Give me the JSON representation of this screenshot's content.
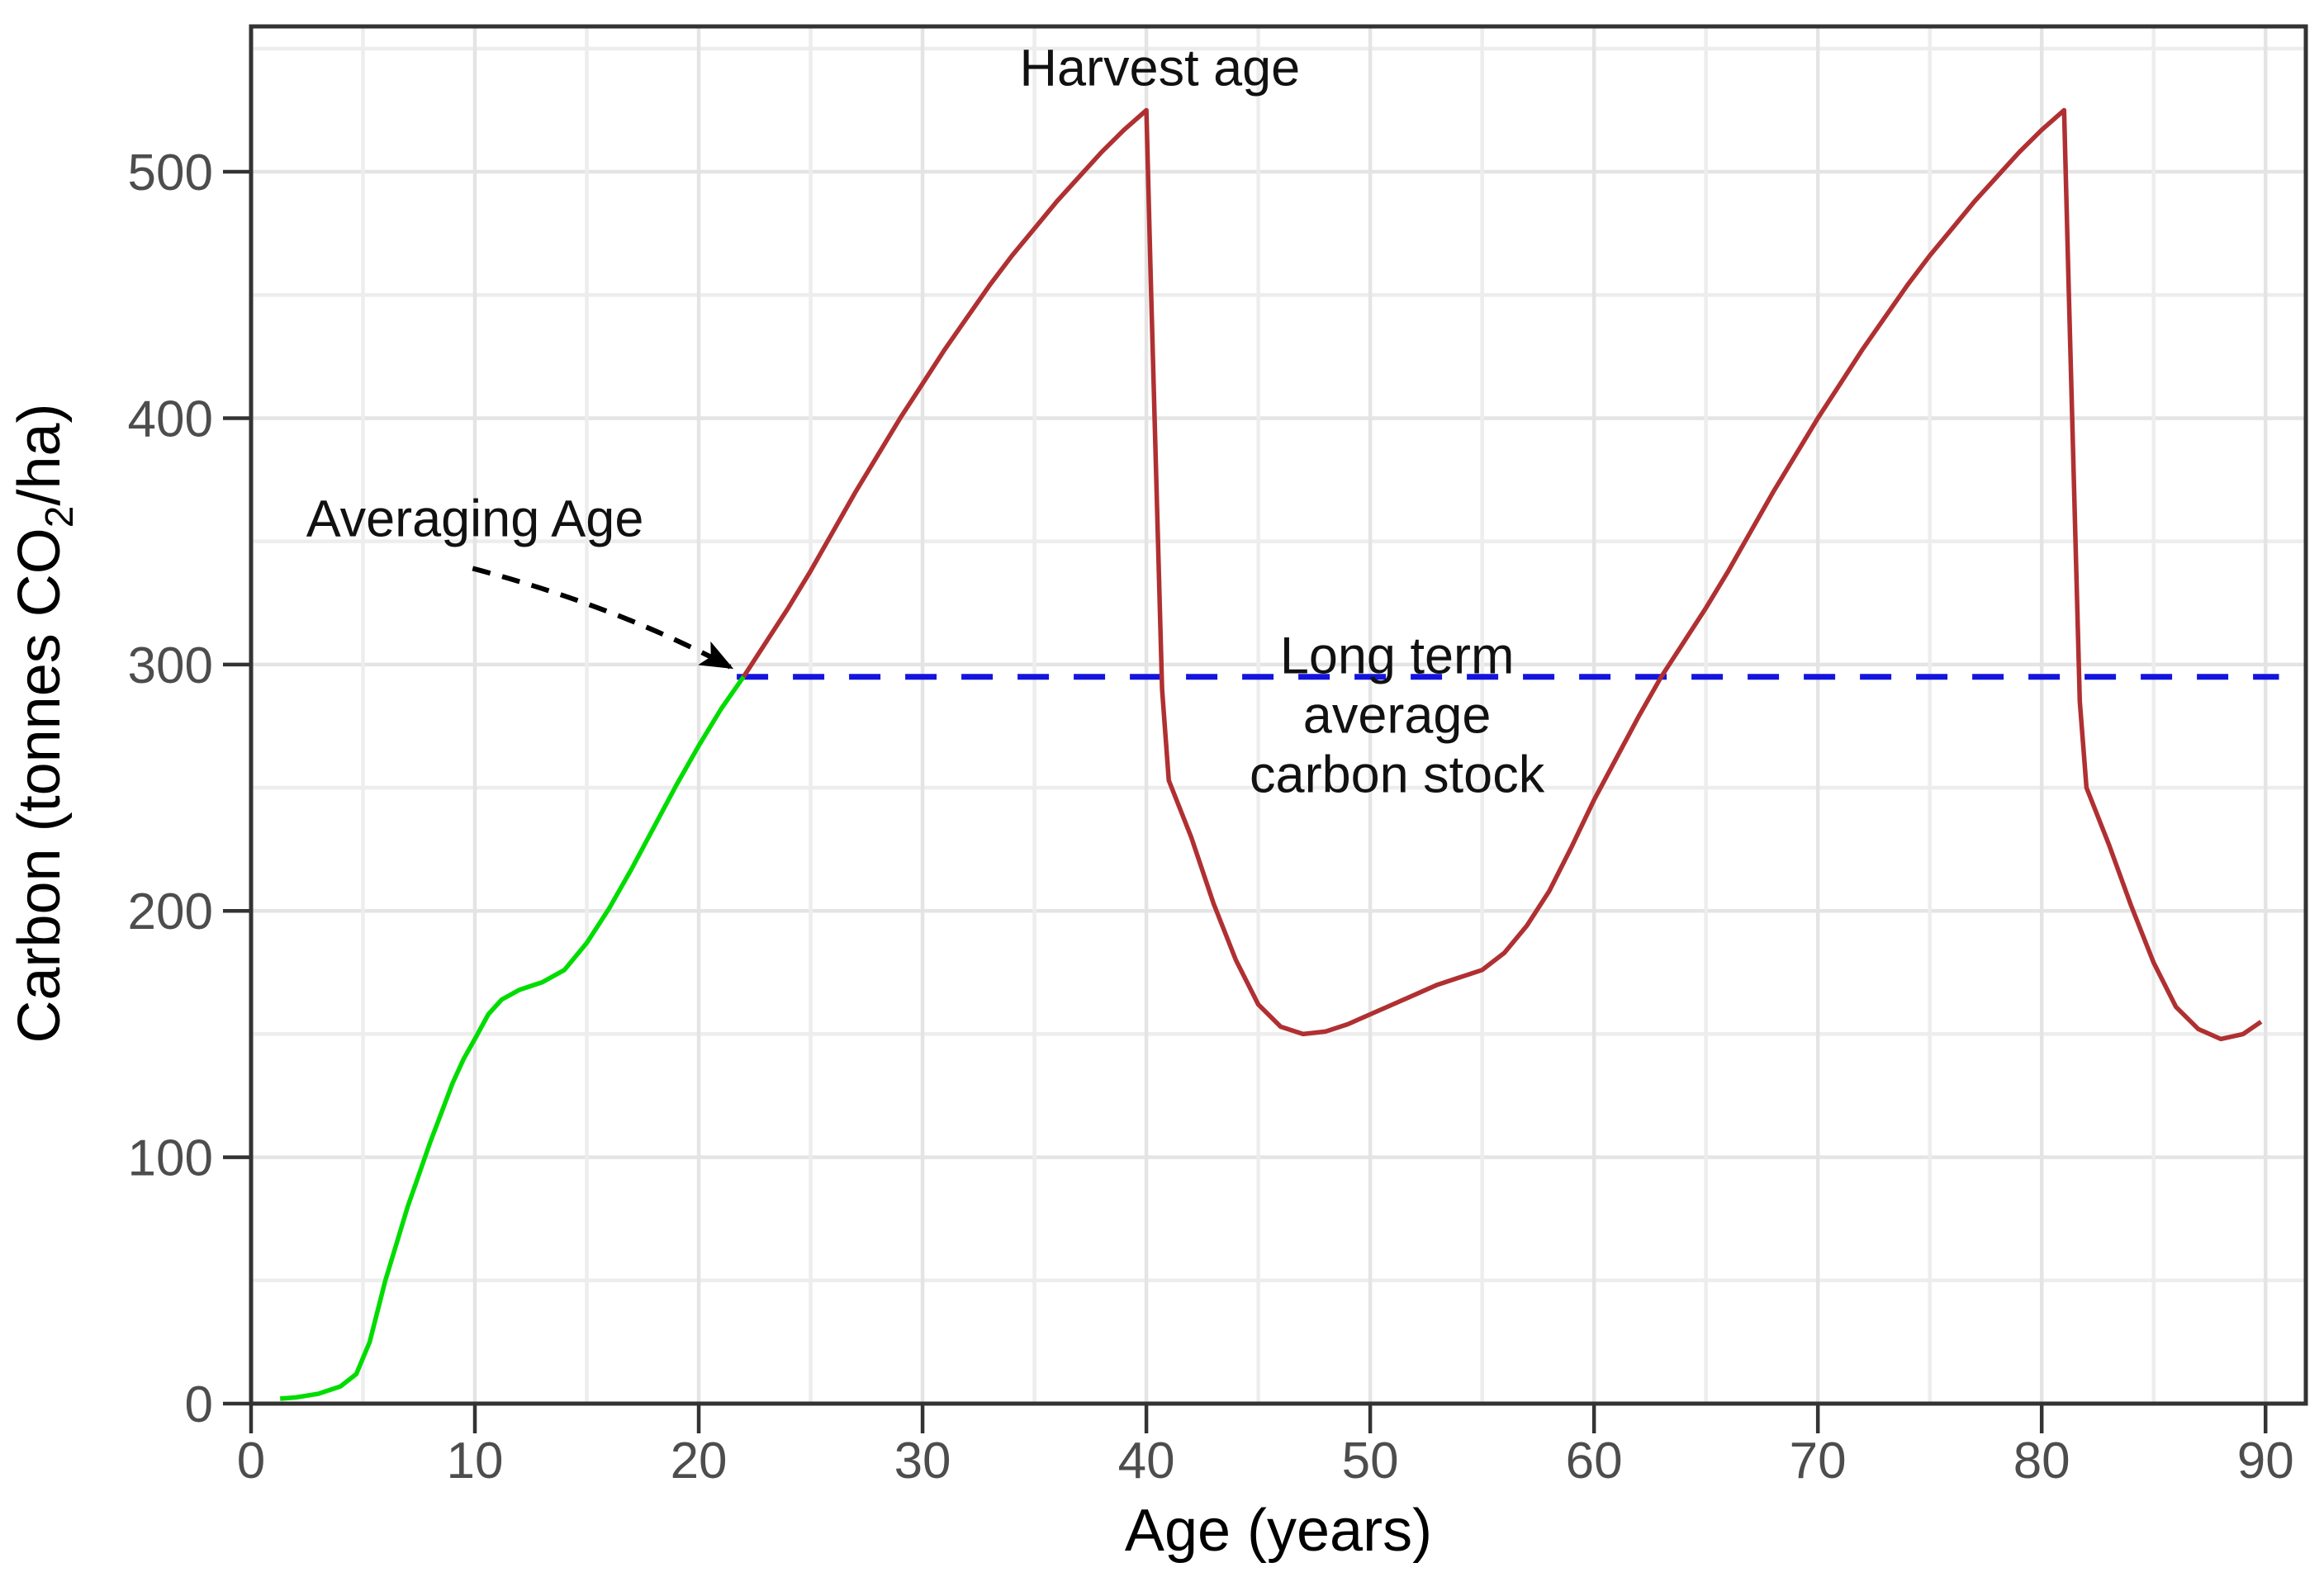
{
  "chart_data": {
    "type": "line",
    "title": "",
    "xlabel": "Age (years)",
    "ylabel_prefix": "Carbon (tonnes CO",
    "ylabel_subscript": "2",
    "ylabel_suffix": "/ha)",
    "xlim": [
      0,
      91.8
    ],
    "ylim": [
      0,
      559
    ],
    "x_ticks": [
      0,
      10,
      20,
      30,
      40,
      50,
      60,
      70,
      80,
      90
    ],
    "y_ticks": [
      0,
      100,
      200,
      300,
      400,
      500
    ],
    "x_minor_step": 5,
    "y_minor_step": 50,
    "grid": true,
    "legend": "none",
    "long_term_average_value": 295,
    "averaging_age_years": 22,
    "harvest_age_years": 40,
    "peak_carbon_value": 525,
    "colors": {
      "young_growth": "#00DC00",
      "rotation": "#B03032",
      "average_line": "#1414DF",
      "axis": "#333333",
      "gridline_major": "#E4E4E4",
      "gridline_minor": "#EDEDED",
      "tick_label": "#4D4D4D",
      "annotation": "#111111",
      "arrow": "#000000"
    },
    "series": [
      {
        "name": "young-stand-growth",
        "color_key": "young_growth",
        "style": "solid",
        "points": [
          [
            1.3,
            2
          ],
          [
            2,
            2.5
          ],
          [
            3,
            4
          ],
          [
            4,
            7
          ],
          [
            4.7,
            12
          ],
          [
            5.3,
            25
          ],
          [
            6,
            50
          ],
          [
            6.5,
            65
          ],
          [
            7,
            80
          ],
          [
            7.5,
            93
          ],
          [
            8,
            106
          ],
          [
            8.5,
            118
          ],
          [
            9,
            130
          ],
          [
            9.5,
            140
          ],
          [
            10,
            148
          ],
          [
            10.6,
            158
          ],
          [
            11.2,
            164
          ],
          [
            12,
            168
          ],
          [
            13,
            171
          ],
          [
            14,
            176
          ],
          [
            15,
            187
          ],
          [
            16,
            201
          ],
          [
            17,
            217
          ],
          [
            18,
            234
          ],
          [
            19,
            251
          ],
          [
            20,
            267
          ],
          [
            21,
            282
          ],
          [
            22,
            295
          ]
        ]
      },
      {
        "name": "harvest-rotation-cycles",
        "color_key": "rotation",
        "style": "solid",
        "points": [
          [
            22,
            295
          ],
          [
            23,
            309
          ],
          [
            24,
            323
          ],
          [
            25,
            338
          ],
          [
            26,
            354
          ],
          [
            27,
            370
          ],
          [
            28,
            385
          ],
          [
            29,
            400
          ],
          [
            30,
            414
          ],
          [
            31,
            428
          ],
          [
            32,
            441
          ],
          [
            33,
            454
          ],
          [
            34,
            466
          ],
          [
            35,
            477
          ],
          [
            36,
            488
          ],
          [
            37,
            498
          ],
          [
            38,
            508
          ],
          [
            39,
            517
          ],
          [
            40,
            525
          ],
          [
            40.2,
            455
          ],
          [
            40.7,
            290
          ],
          [
            41,
            253
          ],
          [
            42,
            230
          ],
          [
            43,
            203
          ],
          [
            44,
            180
          ],
          [
            45,
            162
          ],
          [
            46,
            153
          ],
          [
            47,
            150
          ],
          [
            48,
            151
          ],
          [
            49,
            154
          ],
          [
            50,
            158
          ],
          [
            51,
            162
          ],
          [
            52,
            166
          ],
          [
            53,
            170
          ],
          [
            54,
            173
          ],
          [
            55,
            176
          ],
          [
            56,
            183
          ],
          [
            57,
            194
          ],
          [
            58,
            208
          ],
          [
            59,
            226
          ],
          [
            60,
            245
          ],
          [
            61,
            262
          ],
          [
            62,
            279
          ],
          [
            63,
            295
          ],
          [
            64,
            309
          ],
          [
            65,
            323
          ],
          [
            66,
            338
          ],
          [
            67,
            354
          ],
          [
            68,
            370
          ],
          [
            69,
            385
          ],
          [
            70,
            400
          ],
          [
            71,
            414
          ],
          [
            72,
            428
          ],
          [
            73,
            441
          ],
          [
            74,
            454
          ],
          [
            75,
            466
          ],
          [
            76,
            477
          ],
          [
            77,
            488
          ],
          [
            78,
            498
          ],
          [
            79,
            508
          ],
          [
            80,
            517
          ],
          [
            81,
            525
          ],
          [
            81.2,
            455
          ],
          [
            81.7,
            285
          ],
          [
            82,
            250
          ],
          [
            83,
            227
          ],
          [
            84,
            202
          ],
          [
            85,
            179
          ],
          [
            86,
            161
          ],
          [
            87,
            152
          ],
          [
            88,
            148
          ],
          [
            89,
            150
          ],
          [
            89.8,
            155
          ]
        ]
      },
      {
        "name": "long-term-average-carbon-stock",
        "color_key": "average_line",
        "style": "dashed",
        "points": [
          [
            21.7,
            295
          ],
          [
            90.6,
            295
          ]
        ]
      }
    ],
    "annotations": [
      {
        "id": "harvest-age-label",
        "lines": [
          "Harvest age"
        ],
        "x": 40.6,
        "y_value": 535,
        "anchor": "middle"
      },
      {
        "id": "averaging-age-label",
        "lines": [
          "Averaging Age"
        ],
        "x": 10.0,
        "y_value": 352,
        "anchor": "middle"
      },
      {
        "id": "long-term-average-label",
        "lines": [
          "Long term",
          "average",
          "carbon stock"
        ],
        "x": 51.2,
        "y_value": 296.5,
        "anchor": "middle"
      }
    ],
    "arrow": {
      "from_x": 9.9,
      "from_y": 339,
      "to_x": 21.4,
      "to_y": 299
    }
  }
}
